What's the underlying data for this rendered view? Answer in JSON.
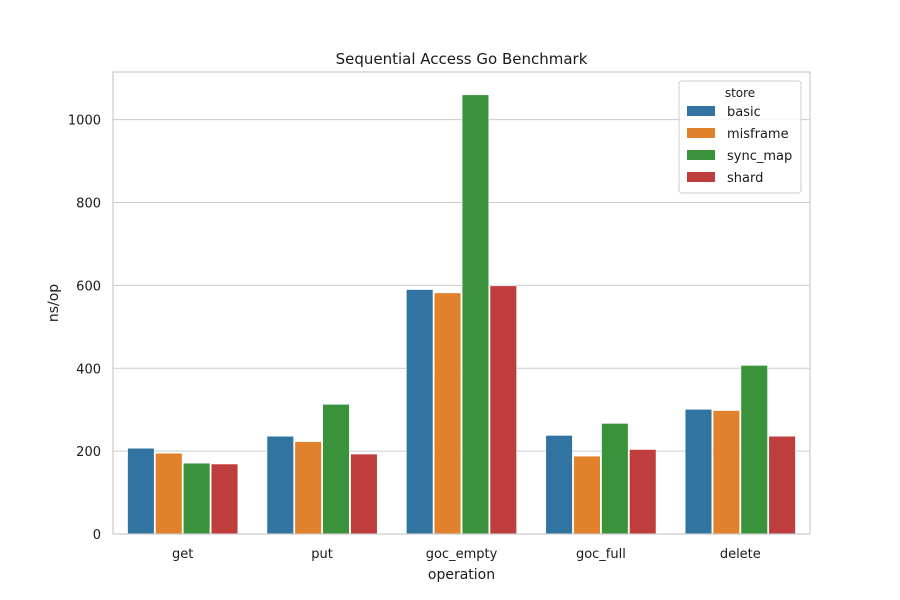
{
  "chart_data": {
    "type": "bar",
    "title": "Sequential Access Go Benchmark",
    "xlabel": "operation",
    "ylabel": "ns/op",
    "ylim": [
      0,
      1115
    ],
    "yticks": [
      0,
      200,
      400,
      600,
      800,
      1000
    ],
    "grid": true,
    "legend": {
      "title": "store",
      "position": "top-right"
    },
    "categories": [
      "get",
      "put",
      "goc_empty",
      "goc_full",
      "delete"
    ],
    "series": [
      {
        "name": "basic",
        "color": "#3274a1",
        "values": [
          207,
          236,
          590,
          238,
          301
        ]
      },
      {
        "name": "misframe",
        "color": "#e1812c",
        "values": [
          195,
          223,
          582,
          188,
          298
        ]
      },
      {
        "name": "sync_map",
        "color": "#3a923a",
        "values": [
          171,
          313,
          1060,
          267,
          407
        ]
      },
      {
        "name": "shard",
        "color": "#c03d3e",
        "values": [
          169,
          193,
          599,
          204,
          236
        ]
      }
    ]
  }
}
